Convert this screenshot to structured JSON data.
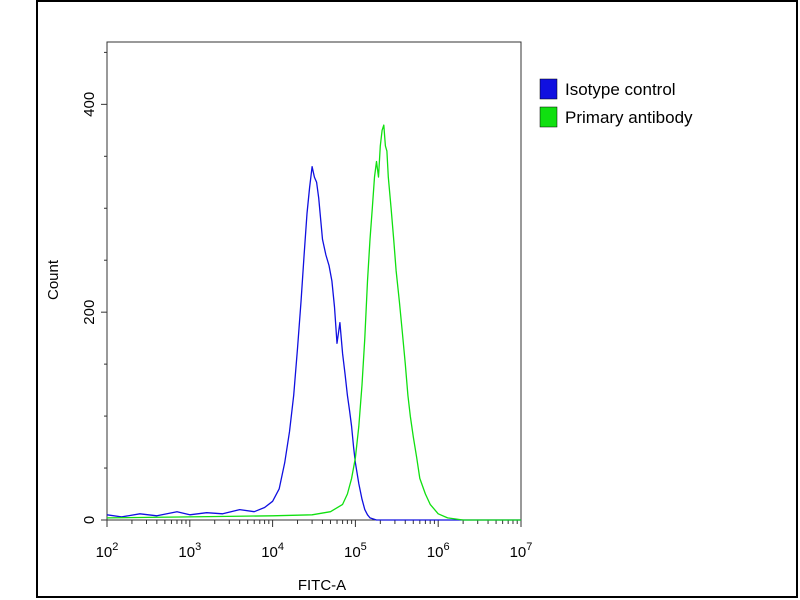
{
  "chart_data": {
    "type": "line",
    "xlabel": "FITC-A",
    "ylabel": "Count",
    "xscale": "log",
    "xlim": [
      100,
      10000000
    ],
    "ylim": [
      0,
      460
    ],
    "x_ticks": [
      {
        "value": 100,
        "base": "10",
        "exp": "2"
      },
      {
        "value": 1000,
        "base": "10",
        "exp": "3"
      },
      {
        "value": 10000,
        "base": "10",
        "exp": "4"
      },
      {
        "value": 100000,
        "base": "10",
        "exp": "5"
      },
      {
        "value": 1000000,
        "base": "10",
        "exp": "6"
      },
      {
        "value": 10000000,
        "base": "10",
        "exp": "7"
      }
    ],
    "y_ticks": [
      0,
      200,
      400
    ],
    "legend_position": "top-right",
    "series": [
      {
        "name": "Isotype control",
        "color": "#1010e0",
        "x": [
          100,
          150,
          250,
          400,
          700,
          1000,
          1600,
          2500,
          4000,
          6000,
          8000,
          10000,
          12000,
          14000,
          16000,
          18000,
          20000,
          22000,
          24000,
          26000,
          28000,
          30000,
          32000,
          34000,
          36000,
          38000,
          40000,
          44000,
          48000,
          52000,
          56000,
          60000,
          65000,
          70000,
          75000,
          80000,
          85000,
          90000,
          95000,
          100000,
          110000,
          120000,
          130000,
          140000,
          150000,
          165000,
          180000,
          200000,
          250000,
          400000,
          1000000,
          3000000,
          10000000
        ],
        "y": [
          5,
          3,
          6,
          4,
          8,
          5,
          7,
          6,
          10,
          8,
          12,
          18,
          30,
          55,
          85,
          120,
          165,
          210,
          255,
          295,
          320,
          340,
          330,
          325,
          310,
          290,
          270,
          255,
          245,
          230,
          205,
          170,
          190,
          160,
          140,
          120,
          105,
          90,
          70,
          55,
          35,
          20,
          10,
          5,
          2,
          1,
          0,
          0,
          0,
          0,
          0,
          0,
          0
        ]
      },
      {
        "name": "Primary antibody",
        "color": "#10e010",
        "x": [
          100,
          1000,
          10000,
          30000,
          50000,
          70000,
          80000,
          90000,
          100000,
          110000,
          120000,
          130000,
          140000,
          150000,
          160000,
          170000,
          180000,
          190000,
          200000,
          210000,
          220000,
          230000,
          240000,
          250000,
          270000,
          290000,
          310000,
          340000,
          370000,
          400000,
          430000,
          460000,
          500000,
          550000,
          600000,
          700000,
          800000,
          1000000,
          1300000,
          2000000,
          5000000,
          10000000
        ],
        "y": [
          2,
          3,
          4,
          5,
          8,
          15,
          25,
          40,
          60,
          90,
          130,
          175,
          230,
          270,
          300,
          330,
          345,
          330,
          360,
          375,
          380,
          360,
          355,
          330,
          300,
          270,
          240,
          210,
          180,
          150,
          120,
          100,
          80,
          60,
          40,
          25,
          15,
          6,
          2,
          0,
          0,
          0
        ]
      }
    ]
  }
}
